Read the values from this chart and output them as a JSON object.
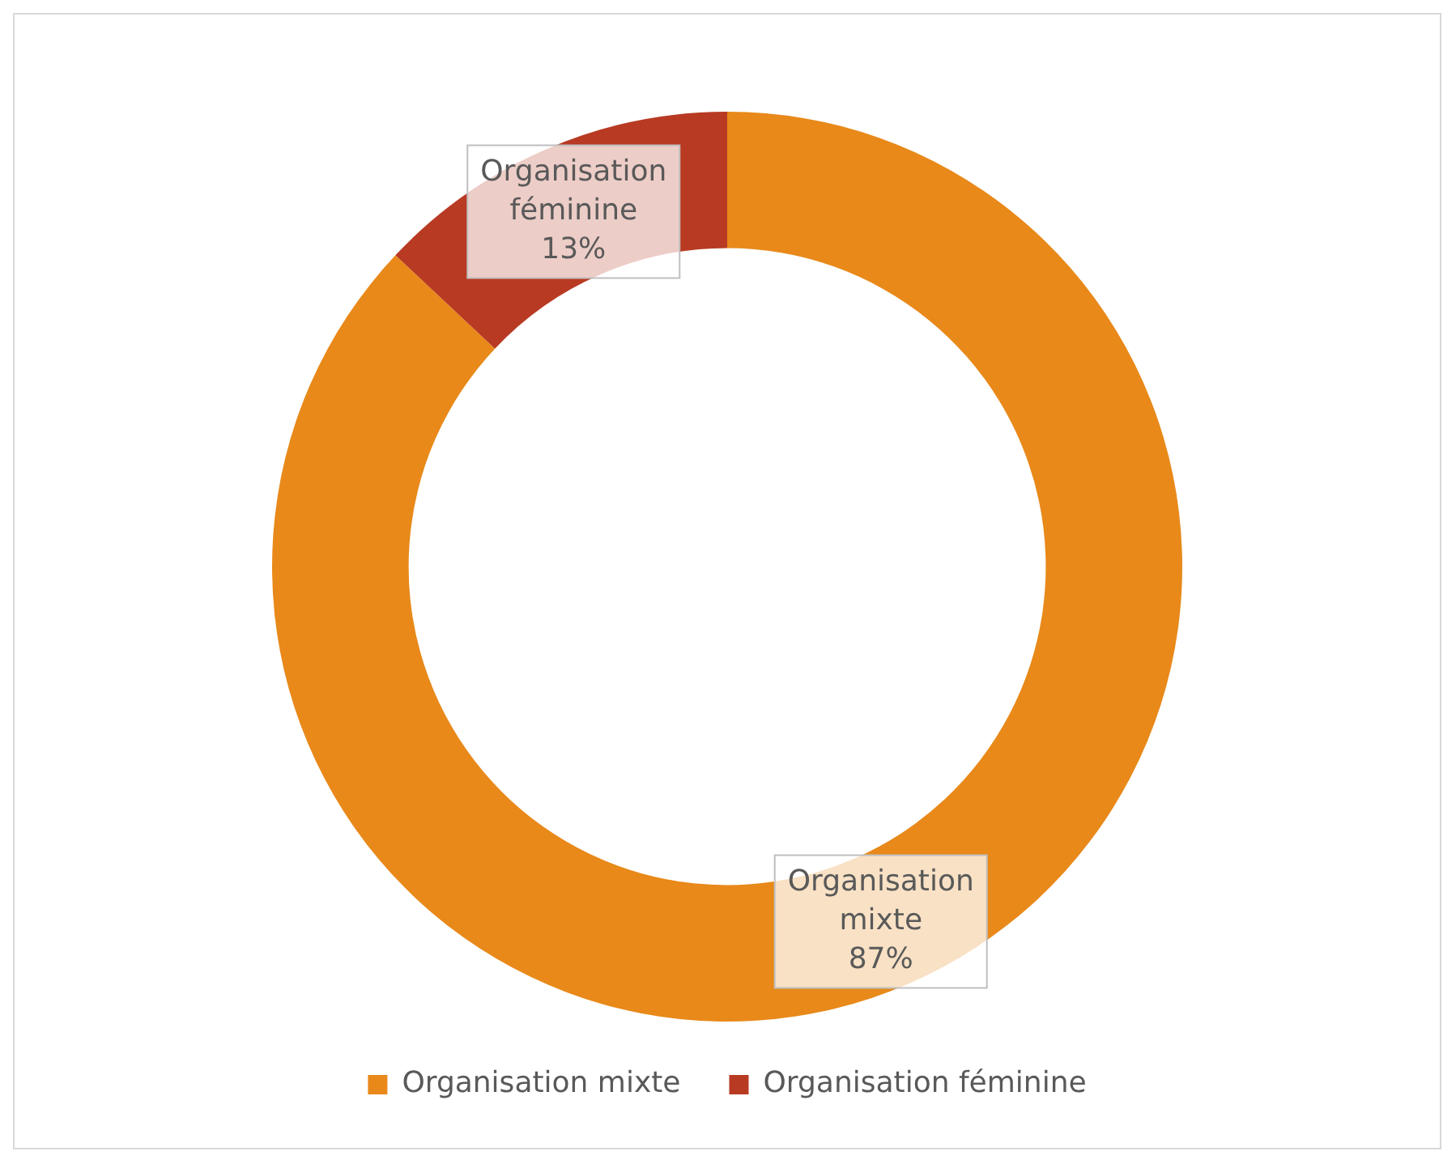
{
  "chart_data": {
    "type": "donut",
    "categories": [
      "Organisation mixte",
      "Organisation féminine"
    ],
    "values": [
      87,
      13
    ],
    "value_labels": [
      "87%",
      "13%"
    ],
    "colors": [
      "#e8891a",
      "#b83a23"
    ],
    "legend": "bottom"
  }
}
